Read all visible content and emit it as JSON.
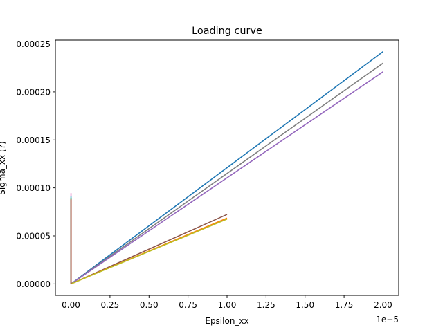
{
  "chart_data": {
    "type": "line",
    "title": "Loading curve",
    "xlabel": "Epsilon_xx",
    "ylabel": "Sigma_xx (?)",
    "x_offset_label": "1e−5",
    "xlim": [
      -0.1,
      2.1
    ],
    "ylim": [
      -1.2e-05,
      0.000254
    ],
    "x_ticks": [
      0.0,
      0.25,
      0.5,
      0.75,
      1.0,
      1.25,
      1.5,
      1.75,
      2.0
    ],
    "x_tick_labels": [
      "0.00",
      "0.25",
      "0.50",
      "0.75",
      "1.00",
      "1.25",
      "1.50",
      "1.75",
      "2.00"
    ],
    "y_ticks": [
      0.0,
      5e-05,
      0.0001,
      0.00015,
      0.0002,
      0.00025
    ],
    "y_tick_labels": [
      "0.00000",
      "0.00005",
      "0.00010",
      "0.00015",
      "0.00020",
      "0.00025"
    ],
    "grid": false,
    "legend": "none",
    "series": [
      {
        "color": "#1f77b4",
        "x": [
          0.0,
          2.0
        ],
        "y": [
          0.0,
          0.000242
        ]
      },
      {
        "color": "#7f7f7f",
        "x": [
          0.0,
          2.0
        ],
        "y": [
          0.0,
          0.00023
        ]
      },
      {
        "color": "#9467bd",
        "x": [
          0.0,
          2.0
        ],
        "y": [
          0.0,
          0.000221
        ]
      },
      {
        "color": "#8c564b",
        "x": [
          0.0,
          1.0
        ],
        "y": [
          0.0,
          7.23e-05
        ]
      },
      {
        "color": "#ff7f0e",
        "x": [
          0.0,
          1.0
        ],
        "y": [
          0.0,
          6.85e-05
        ]
      },
      {
        "color": "#bcbd22",
        "x": [
          0.0,
          1.0
        ],
        "y": [
          0.0,
          6.75e-05
        ]
      },
      {
        "color": "#e377c2",
        "x": [
          0.0,
          0.0
        ],
        "y": [
          0.0,
          9.45e-05
        ]
      },
      {
        "color": "#17becf",
        "x": [
          0.0,
          0.0
        ],
        "y": [
          0.0,
          9.1e-05
        ]
      },
      {
        "color": "#2ca02c",
        "x": [
          0.0,
          0.0
        ],
        "y": [
          0.0,
          8.95e-05
        ]
      },
      {
        "color": "#d62728",
        "x": [
          0.0,
          0.0
        ],
        "y": [
          -5e-07,
          8.8e-05
        ]
      }
    ]
  }
}
